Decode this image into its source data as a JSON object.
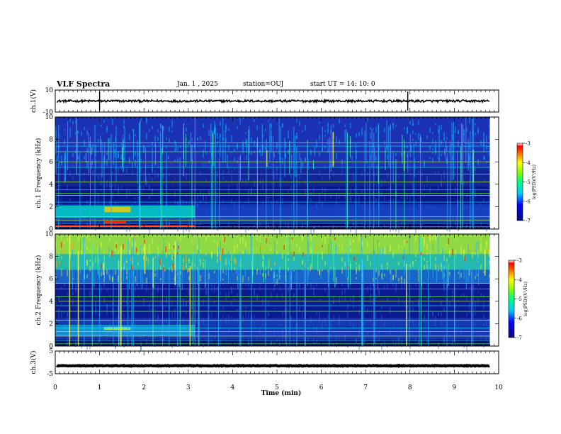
{
  "header": {
    "title": "VLF Spectra",
    "date": "Jan. 1 , 2025",
    "station": "station=OUJ",
    "start": "start UT = 14: 10: 0"
  },
  "colors": {
    "colormap": [
      "#0a0a7a",
      "#0000ff",
      "#0055ff",
      "#00c8ff",
      "#00ffb0",
      "#50ff00",
      "#ffff00",
      "#ff8000",
      "#ff0000",
      "#ffffff"
    ]
  },
  "chart_data": [
    {
      "type": "line",
      "ylabel": "ch.1(V)",
      "ylim": [
        -10,
        10
      ],
      "yticks": [
        -10,
        10
      ],
      "xlim": [
        0,
        10
      ],
      "trace_level": 0,
      "trace_amplitude": 1
    },
    {
      "type": "heatmap",
      "ylabel": "ch.1 Frequency (kHz)",
      "ylim": [
        0,
        10
      ],
      "yticks": [
        0,
        2,
        4,
        6,
        8,
        10
      ],
      "xlim": [
        0,
        10
      ],
      "data_end_min": 9.8,
      "colorbar": {
        "label": "log(PSD)(V²/Hz)",
        "range": [
          -7,
          -3
        ],
        "ticks": [
          -7,
          -6,
          -5,
          -4,
          -3
        ]
      }
    },
    {
      "type": "heatmap",
      "ylabel": "ch.2 Frequency (kHz)",
      "ylim": [
        0,
        10
      ],
      "yticks": [
        0,
        2,
        4,
        6,
        8,
        10
      ],
      "xlim": [
        0,
        10
      ],
      "data_end_min": 9.8,
      "colorbar": {
        "label": "log(PSD)(V²/Hz)",
        "range": [
          -7,
          -3
        ],
        "ticks": [
          -7,
          -6,
          -5,
          -4,
          -3
        ]
      }
    },
    {
      "type": "line",
      "ylabel": "ch.3(V)",
      "ylim": [
        -5,
        5
      ],
      "yticks": [
        -5,
        5
      ],
      "xlim": [
        0,
        10
      ],
      "trace_level": -1.5,
      "trace_amplitude": 0.15
    }
  ],
  "xaxis": {
    "label": "Time (min)",
    "ticks": [
      0,
      1,
      2,
      3,
      4,
      5,
      6,
      7,
      8,
      9,
      10
    ]
  }
}
